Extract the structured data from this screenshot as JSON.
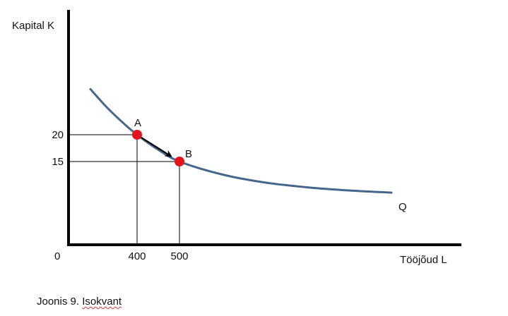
{
  "chart_data": {
    "type": "line",
    "title": "",
    "xlabel": "Tööjõud L",
    "ylabel": "Kapital K",
    "origin_label": "0",
    "x_ticks": [
      400,
      500
    ],
    "y_ticks": [
      20,
      15
    ],
    "x_tick_labels": [
      "400",
      "500"
    ],
    "y_tick_labels": [
      "20",
      "15"
    ],
    "series": [
      {
        "name": "Q",
        "color": "#44668c",
        "points": [
          {
            "x": 290,
            "y": 28.5
          },
          {
            "x": 330,
            "y": 25.0
          },
          {
            "x": 370,
            "y": 22.0
          },
          {
            "x": 400,
            "y": 20.0
          },
          {
            "x": 450,
            "y": 17.2
          },
          {
            "x": 500,
            "y": 15.0
          },
          {
            "x": 600,
            "y": 12.6
          },
          {
            "x": 700,
            "y": 11.1
          },
          {
            "x": 800,
            "y": 10.2
          },
          {
            "x": 900,
            "y": 9.6
          },
          {
            "x": 1000,
            "y": 9.2
          }
        ]
      }
    ],
    "highlighted_points": [
      {
        "label": "A",
        "x": 400,
        "y": 20,
        "color": "#e3141b"
      },
      {
        "label": "B",
        "x": 500,
        "y": 15,
        "color": "#e3141b"
      }
    ],
    "arrow": {
      "from": "A",
      "to": "B",
      "color": "#000000"
    },
    "grid": false,
    "legend": "none"
  },
  "caption": {
    "prefix": "Joonis 9. ",
    "underlined_word": "Isokvant"
  },
  "colors": {
    "axis": "#000000",
    "guide_lines": "#000000",
    "curve": "#44668c",
    "points": "#e3141b"
  }
}
